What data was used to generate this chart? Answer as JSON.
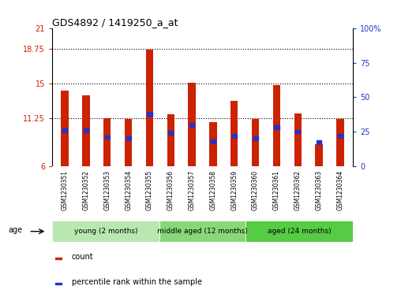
{
  "title": "GDS4892 / 1419250_a_at",
  "samples": [
    "GSM1230351",
    "GSM1230352",
    "GSM1230353",
    "GSM1230354",
    "GSM1230355",
    "GSM1230356",
    "GSM1230357",
    "GSM1230358",
    "GSM1230359",
    "GSM1230360",
    "GSM1230361",
    "GSM1230362",
    "GSM1230363",
    "GSM1230364"
  ],
  "red_values": [
    14.2,
    13.7,
    11.25,
    11.1,
    18.7,
    11.6,
    15.05,
    10.8,
    13.1,
    11.1,
    14.8,
    11.7,
    8.4,
    11.15
  ],
  "blue_percentiles": [
    26,
    26,
    21,
    20,
    38,
    24,
    30,
    18,
    22,
    20,
    28,
    25,
    17,
    22
  ],
  "ymin": 6,
  "ymax": 21,
  "y2min": 0,
  "y2max": 100,
  "yticks": [
    6,
    11.25,
    15,
    18.75,
    21
  ],
  "ytick_labels": [
    "6",
    "11.25",
    "15",
    "18.75",
    "21"
  ],
  "y2ticks": [
    0,
    25,
    50,
    75,
    100
  ],
  "y2tick_labels": [
    "0",
    "25",
    "50",
    "75",
    "100%"
  ],
  "hlines": [
    11.25,
    15,
    18.75
  ],
  "groups": [
    {
      "label": "young (2 months)",
      "start": 0,
      "end": 5,
      "color": "#b8e8b0"
    },
    {
      "label": "middle aged (12 months)",
      "start": 5,
      "end": 9,
      "color": "#88d87a"
    },
    {
      "label": "aged (24 months)",
      "start": 9,
      "end": 14,
      "color": "#55cc44"
    }
  ],
  "bar_color": "#cc2200",
  "blue_color": "#2233cc",
  "bar_width": 0.35,
  "tick_color_left": "#cc2200",
  "tick_color_right": "#2233cc",
  "age_label": "age",
  "legend_count": "count",
  "legend_percentile": "percentile rank within the sample",
  "gray_bg": "#d8d8d8",
  "plot_bg": "#ffffff"
}
